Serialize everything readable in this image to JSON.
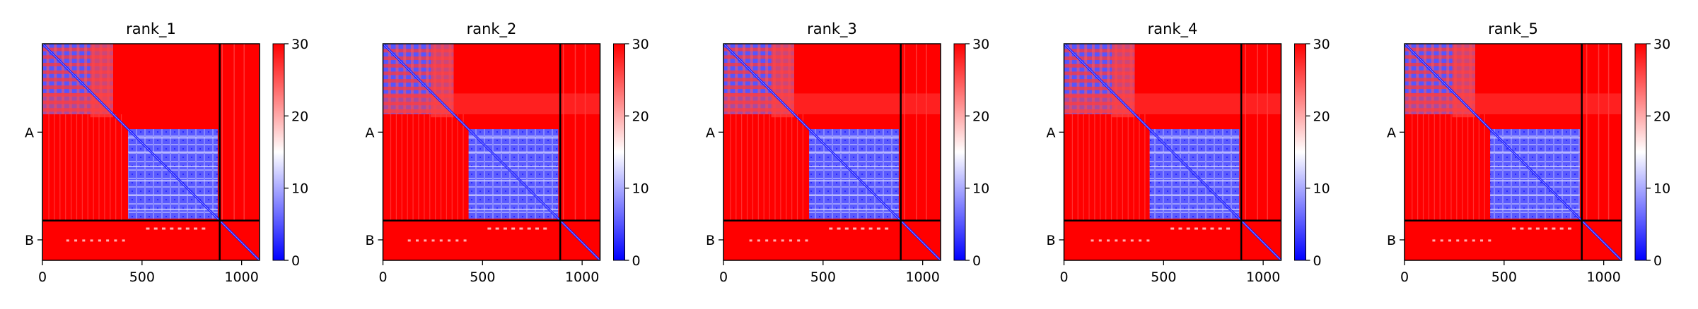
{
  "chart_data": {
    "type": "heatmap",
    "panels": [
      {
        "title": "rank_1"
      },
      {
        "title": "rank_2"
      },
      {
        "title": "rank_3"
      },
      {
        "title": "rank_4"
      },
      {
        "title": "rank_5"
      }
    ],
    "xlim": [
      0,
      1090
    ],
    "ylim": [
      1090,
      0
    ],
    "xticks": [
      0,
      500,
      1000
    ],
    "xtick_labels": [
      "0",
      "500",
      "1000"
    ],
    "chain_ticks": [
      {
        "label": "A",
        "position": 445
      },
      {
        "label": "B",
        "position": 987
      }
    ],
    "chain_boundary": 890,
    "total_length": 1090,
    "colorbar": {
      "range": [
        0,
        30
      ],
      "ticks": [
        0,
        10,
        20,
        30
      ],
      "tick_labels": [
        "0",
        "10",
        "20",
        "30"
      ],
      "colormap": "bwr",
      "low_color": "#0000ff",
      "mid_color": "#ffffff",
      "high_color": "#ff0000"
    },
    "blocks": [
      {
        "range": [
          0,
          355
        ],
        "description": "low-error domain (chain A, N-terminal)"
      },
      {
        "range": [
          430,
          880
        ],
        "description": "low-error domain (chain A, C-terminal)"
      },
      {
        "range": [
          890,
          1090
        ],
        "description": "chain B"
      }
    ]
  }
}
